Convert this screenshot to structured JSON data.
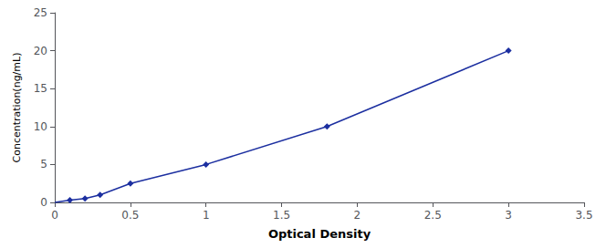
{
  "chart_data": {
    "type": "line",
    "x": [
      0.0,
      0.1,
      0.2,
      0.3,
      0.5,
      1.0,
      1.8,
      3.0
    ],
    "values": [
      0.0,
      0.3,
      0.5,
      1.0,
      2.5,
      5.0,
      10.0,
      20.0
    ],
    "xlabel": "Optical Density",
    "ylabel": "Concentration(ng/mL)",
    "xlim": [
      0,
      3.5
    ],
    "ylim": [
      0,
      25
    ],
    "xticks": [
      0,
      0.5,
      1,
      1.5,
      2,
      2.5,
      3,
      3.5
    ],
    "yticks": [
      0,
      5,
      10,
      15,
      20,
      25
    ],
    "color": "#1C2FA0",
    "marker": "diamond",
    "line_style": "solid",
    "grid": false
  }
}
